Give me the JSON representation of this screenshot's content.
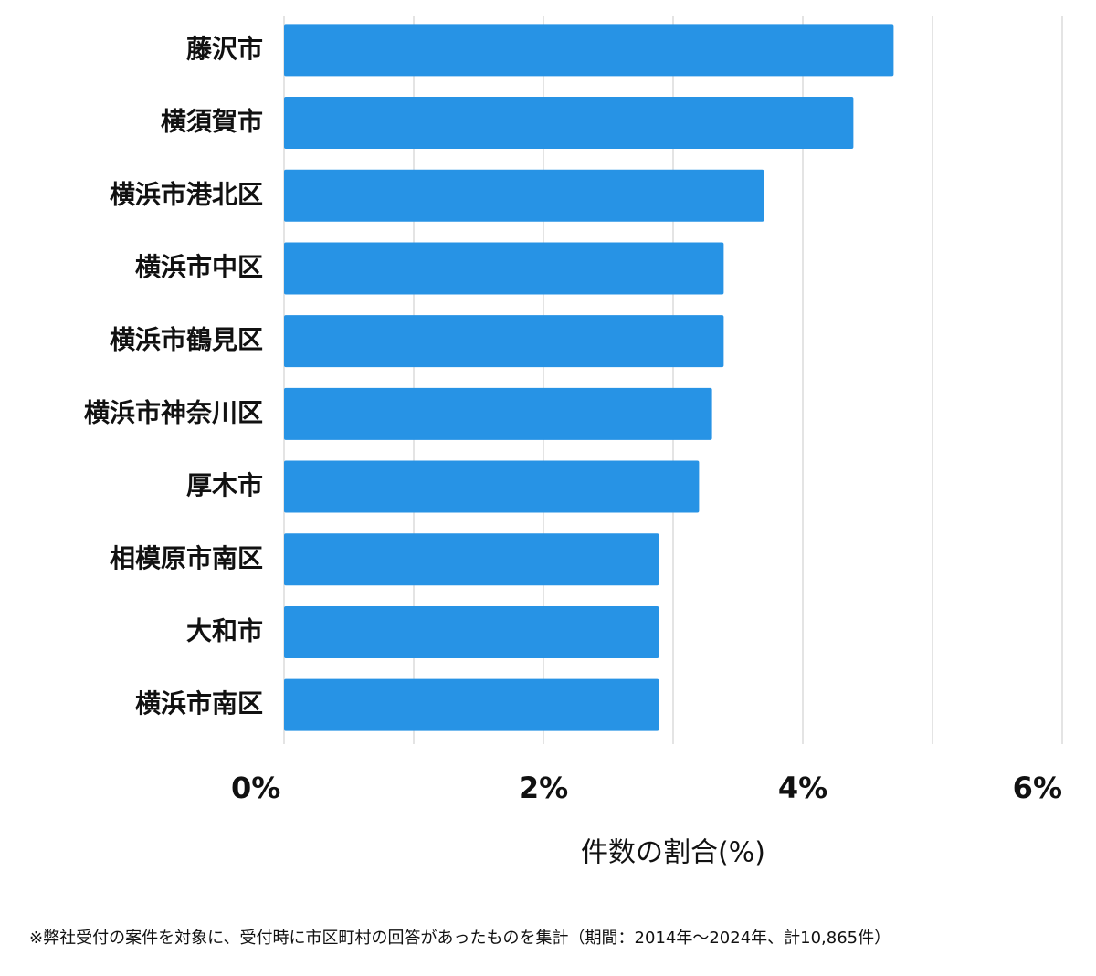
{
  "chart_data": {
    "type": "hbar",
    "categories": [
      "藤沢市",
      "横須賀市",
      "横浜市港北区",
      "横浜市中区",
      "横浜市鶴見区",
      "横浜市神奈川区",
      "厚木市",
      "相模原市南区",
      "大和市",
      "横浜市南区"
    ],
    "values": [
      4.7,
      4.39,
      3.7,
      3.39,
      3.39,
      3.3,
      3.2,
      2.89,
      2.89,
      2.89
    ],
    "color": "#2793e5",
    "xlim": [
      0,
      6
    ],
    "xticks": [
      {
        "value": 0,
        "label": "0%"
      },
      {
        "value": 2,
        "label": "2%"
      },
      {
        "value": 4,
        "label": "4%"
      },
      {
        "value": 6,
        "label": "6%"
      }
    ],
    "minor_xticks": [
      1,
      3,
      5
    ],
    "grid": true,
    "xlabel": "件数の割合(%)",
    "footnote": "※弊社受付の案件を対象に、受付時に市区町村の回答があったものを集計（期間：2014年〜2024年、計10,865件）"
  }
}
